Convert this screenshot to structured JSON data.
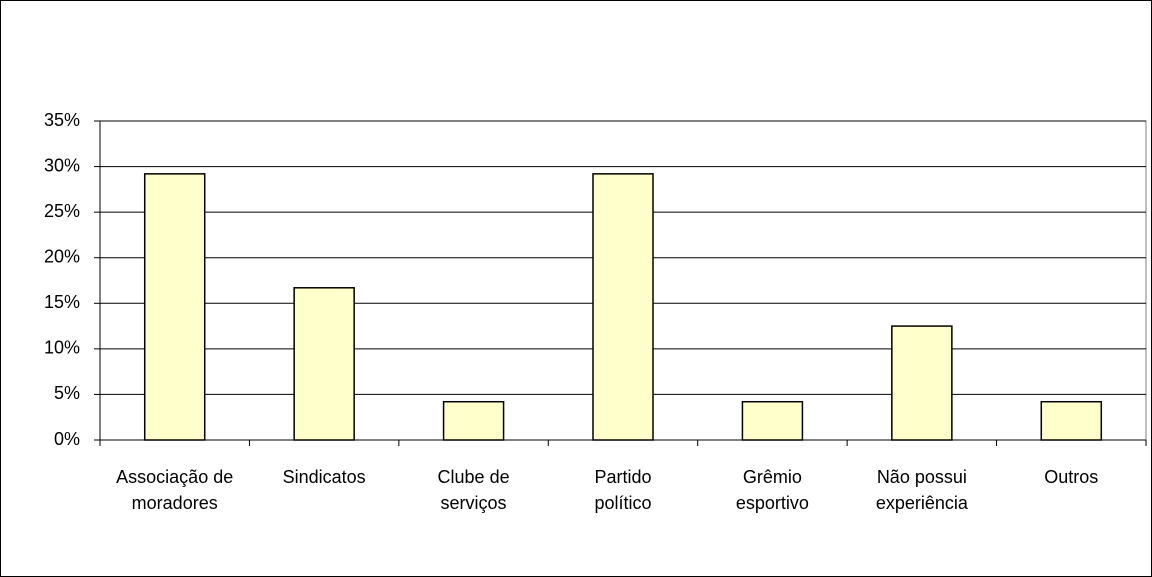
{
  "chart_data": {
    "type": "bar",
    "categories": [
      "Associação de moradores",
      "Sindicatos",
      "Clube de serviços",
      "Partido político",
      "Grêmio esportivo",
      "Não possui experiência",
      "Outros"
    ],
    "values": [
      29.2,
      16.7,
      4.2,
      29.2,
      4.2,
      12.5,
      4.2
    ],
    "color": "#ffffcc",
    "ylim": [
      0,
      35
    ],
    "yticks": [
      {
        "value": 0,
        "label": "0%"
      },
      {
        "value": 5,
        "label": "5%"
      },
      {
        "value": 10,
        "label": "10%"
      },
      {
        "value": 15,
        "label": "15%"
      },
      {
        "value": 20,
        "label": "20%"
      },
      {
        "value": 25,
        "label": "25%"
      },
      {
        "value": 30,
        "label": "30%"
      },
      {
        "value": 35,
        "label": "35%"
      }
    ],
    "grid": true
  }
}
